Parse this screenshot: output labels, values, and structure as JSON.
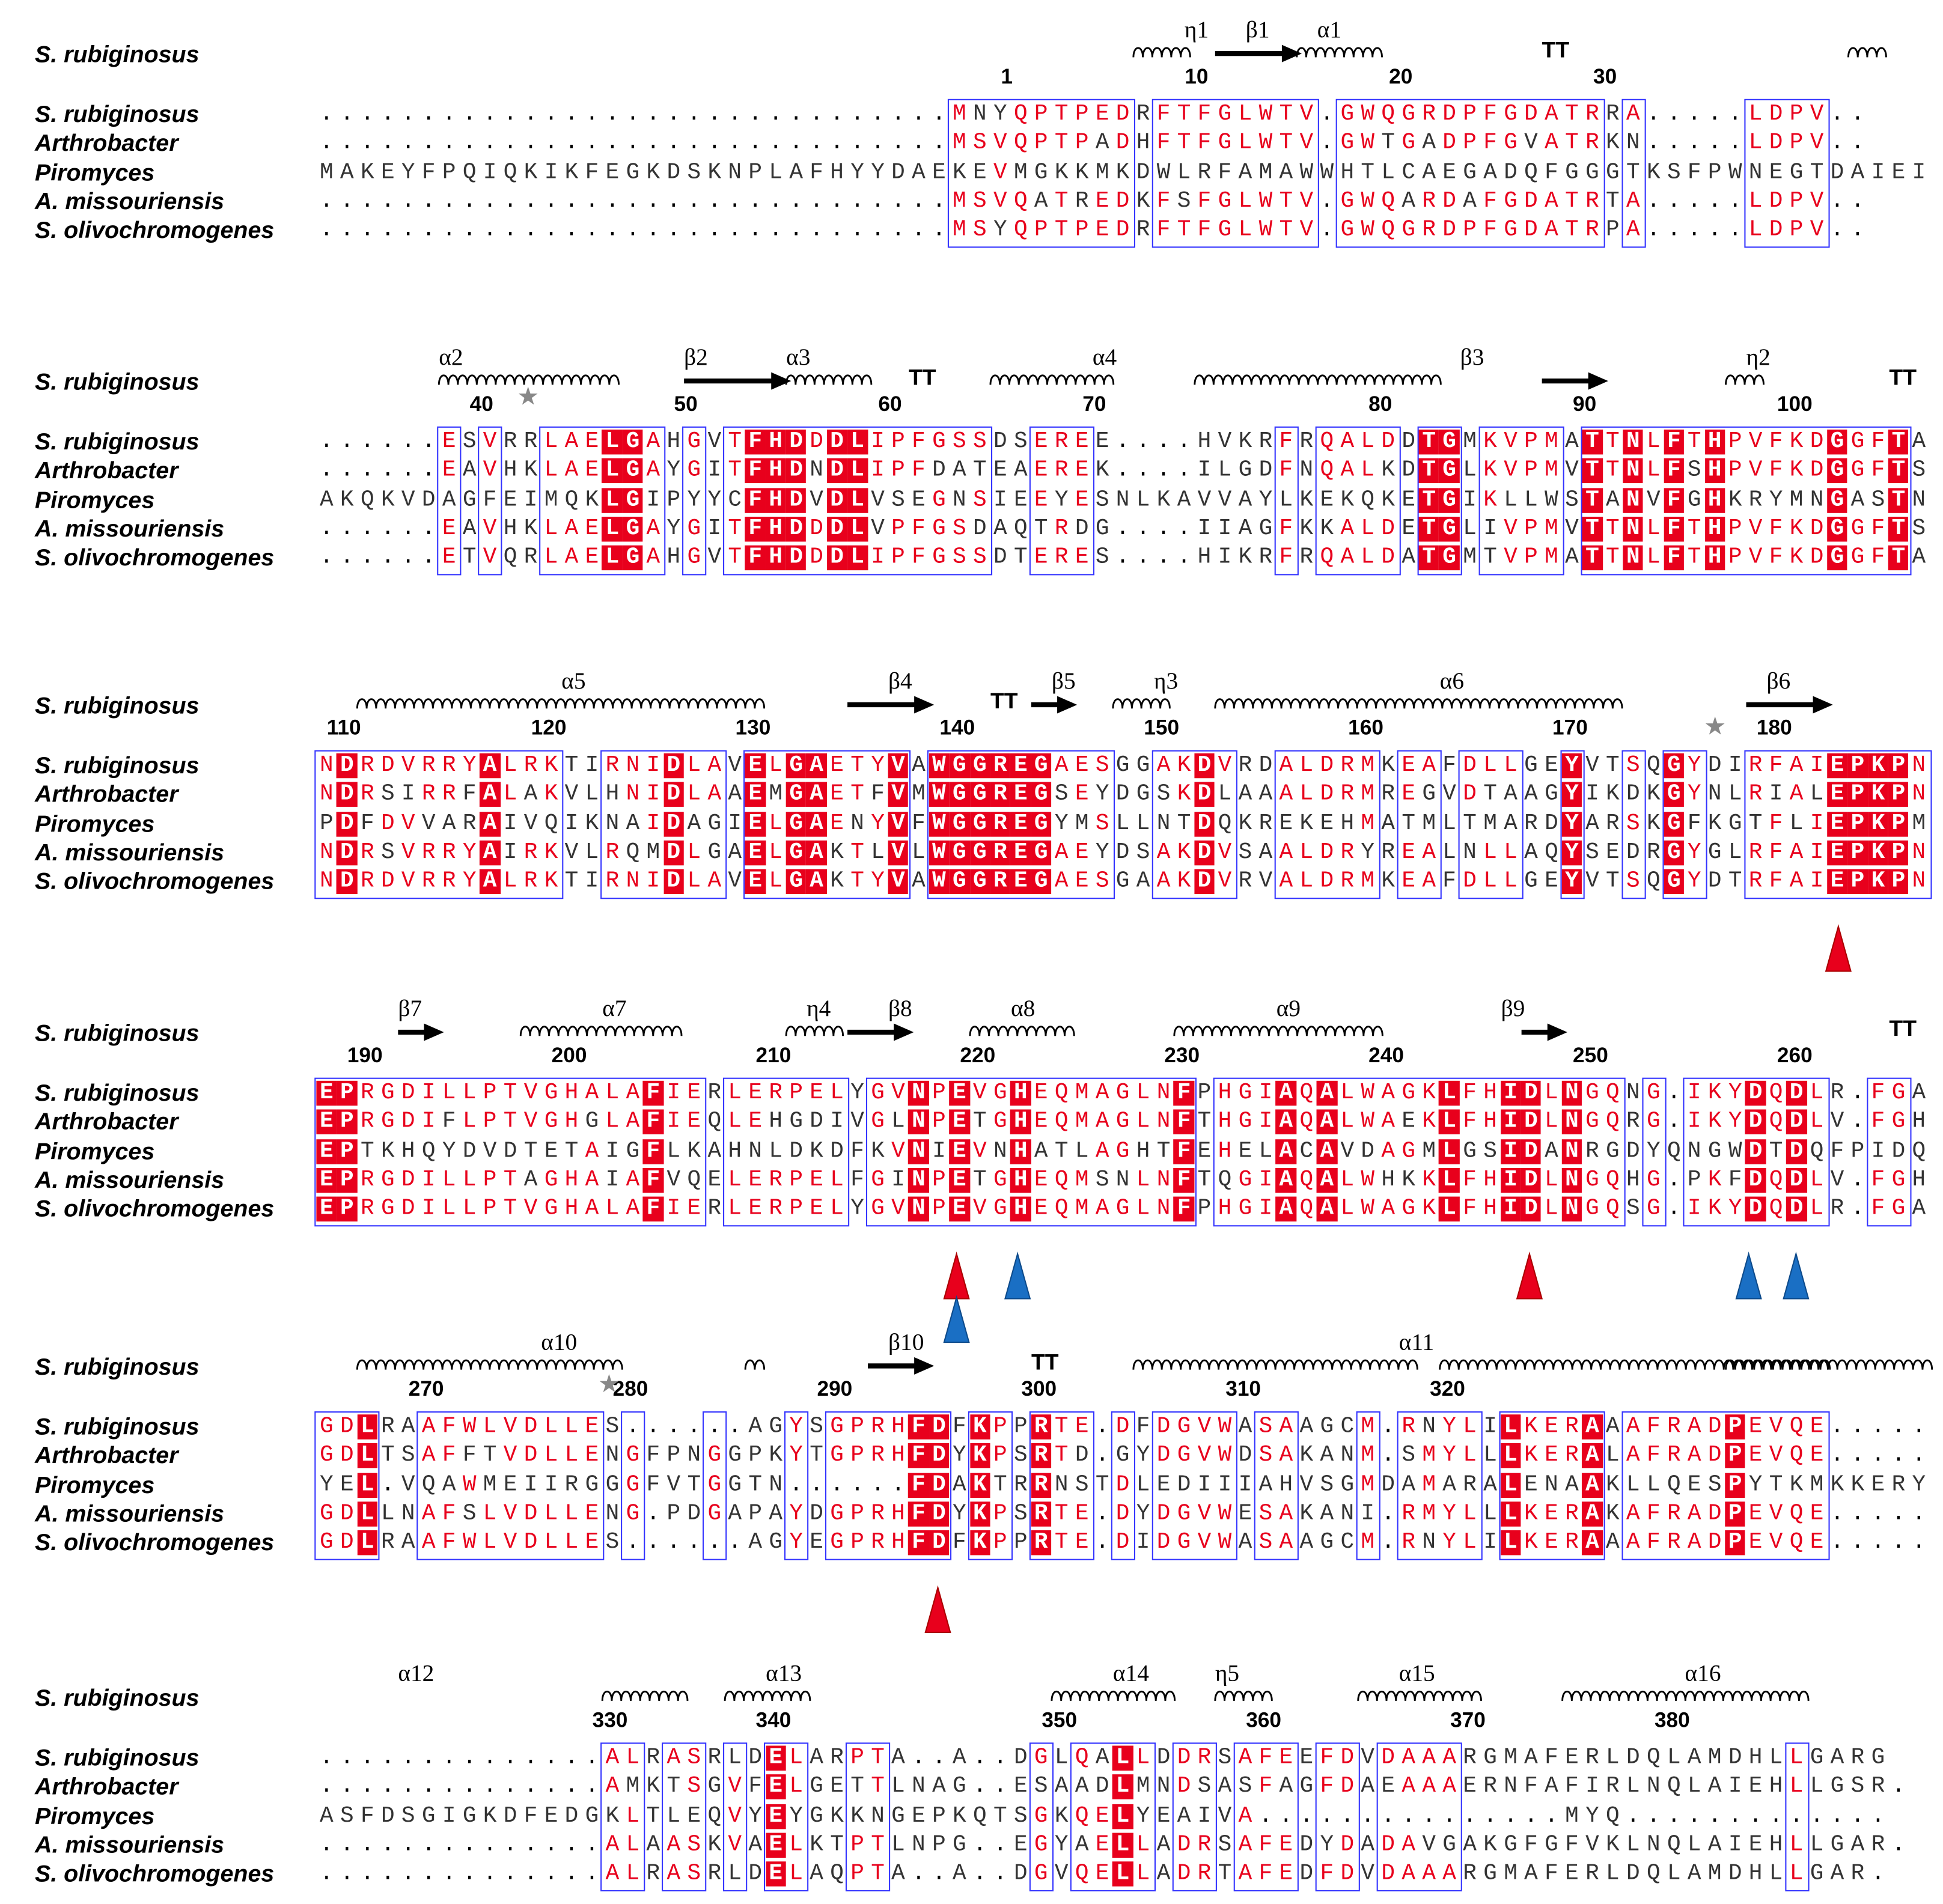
{
  "species": [
    "S. rubiginosus",
    "Arthrobacter",
    "Piromyces",
    "A. missouriensis",
    "S. olivochromogenes"
  ],
  "ss_reference": "S. rubiginosus",
  "blocks": [
    {
      "ss_labels": [
        "η1",
        "β1",
        "α1",
        "TT"
      ],
      "numbers": [
        "1",
        "10",
        "20",
        "30"
      ],
      "rows": [
        "...............................MNYQPTPEDRFTFGLWTV.GWQGRDPFGDATRRA.....LDPV..",
        "...............................MSVQPTPADHFTFGLWTV.GWTGADPFGVATRKN.....LDPV..",
        "MAKEYFPQIQKIKFEGKDSKNPLAFHYYDAEKEVMGKKMKDWLRFAMAWWHTLCAEGADQFGGGTKSFPWNEGTDAIEI",
        "...............................MSVQATREDKFSFGLWTV.GWQARDAFGDATRTA.....LDPV..",
        "...............................MSYQPTPEDRFTFGLWTV.GWQGRDPFGDATRPA.....LDPV.."
      ]
    },
    {
      "ss_labels": [
        "α2",
        "β2",
        "α3",
        "TT",
        "α4",
        "β3",
        "η2",
        "TT"
      ],
      "numbers": [
        "40",
        "50",
        "60",
        "70",
        "80",
        "90",
        "100"
      ],
      "rows": [
        "......ESVRRLAELGAHGVTFHDDDLIPFGSSDSEREE....HVKRFRQALDDTGMKVPMATTNLFTHPVFKDGGFTA",
        "......EAVHKLAELGAYGITFHDNDLIPFDATEAEREK....ILGDFNQALKDTGLKVPMVTTNLFSHPVFKDGGFTS",
        "AKQKVDAGFEIMQKLGIPYYCFHDVDLVSEGNSIEEYESNLKAVVAYLKEKQKETGIKLLWSTANVFGHKRYMNGASTN",
        "......EAVHKLAELGAYGITFHDDDLVPFGSDAQTRDG....IIAGFKKALDETGLIVPMVTTNLFTHPVFKDGGFTS",
        "......ETVQRLAELGAHGVTFHDDDLIPFGSSDTERES....HIKRFRQALDATGMTVPMATTNLFTHPVFKDGGFTA"
      ]
    },
    {
      "ss_labels": [
        "α5",
        "β4",
        "TT",
        "β5",
        "η3",
        "α6",
        "β6"
      ],
      "numbers": [
        "110",
        "120",
        "130",
        "140",
        "150",
        "160",
        "170",
        "180"
      ],
      "rows": [
        "NDRDVRRYALRKTIRNIDLAVELGAETYVAWGGREGAESGGAKDVRDALDRMKEAFDLLGEYVTSQGYDIRFAIEPKPN",
        "NDRSIRRFALAKVLHNIDLAAEMGAETFVMWGGREGSEYDGSKDLAAALDRMREGVDTAAGYIKDKGYNLRIALEPKPN",
        "PDFDVVARAIVQIKNAIDAGIELGAENYVFWGGREGYMSLLNTDQKREKEHMATMLTMARDYARSKGFKGTFLIEPKPM",
        "NDRSVRRYAIRKVLRQMDLGAELGAKTLVLWGGREGAEYDSAKDVSAALDRYREALNLLAQYSEDRGYGLRFAIEPKPN",
        "NDRDVRRYALRKTIRNIDLAVELGAKTYVAWGGREGAESGAAKDVRVALDRMKEAFDLLGEYVTSQGYDTRFAIEPKPN"
      ]
    },
    {
      "ss_labels": [
        "β7",
        "α7",
        "η4",
        "β8",
        "α8",
        "α9",
        "β9",
        "TT"
      ],
      "numbers": [
        "190",
        "200",
        "210",
        "220",
        "230",
        "240",
        "250",
        "260"
      ],
      "rows": [
        "EPRGDILLPTVGHALAFIERLERPELYGVNPEVGHEQMAGLNFPHGIAQALWAGKLFHIDLNGQNG.IKYDQDLR.FGA",
        "EPRGDIFLPTVGHGLAFIEQLEHGDIVGLNPETGHEQMAGLNFTHGIAQALWAEKLFHIDLNGQRG.IKYDQDLV.FGH",
        "EPTKHQYDVDTETAIGFLKAHNLDKDFKVNIEVNHATLAGHTFEHELACAVDAGMLGSIDANRGDYQNGWDTDQFPIDQ",
        "EPRGDILLPTAGHAIAFVQELERPELFGINPETGHEQMSNLNFTQGIAQALWHKKLFHIDLNGQHG.PKFDQDLV.FGH",
        "EPRGDILLPTVGHALAFIERLERPELYGVNPEVGHEQMAGLNFPHGIAQALWAGKLFHIDLNGQSG.IKYDQDLR.FGA"
      ]
    },
    {
      "ss_labels": [
        "α10",
        "β10",
        "TT",
        "α11"
      ],
      "numbers": [
        "270",
        "280",
        "290",
        "300",
        "310",
        "320"
      ],
      "rows": [
        "GDLRAAFWLVDLLES......AGYSGPRHFDFKPPRTE.DFDGVWASAAGCM.RNYLILKERAAAFRADPEVQE.....",
        "GDLTSAFFTVDLLENGFPNGGPKYTGPRHFDYKPSRTD.GYDGVWDSAKANM.SMYLLLKERALAFRADPEVQE.....",
        "YEL.VQAWMEIIRGGGFVTGGTN......FDAKTRRNSTDLEDIIIAHVSGMDAMARALENAAKLLQESPYTKMKKERY",
        "GDLLNAFSLVDLLENG.PDGAPAYDGPRHFDYKPSRTE.DYDGVWESAKANI.RMYLLLKERAKAFRADPEVQE.....",
        "GDLRAAFWLVDLLES......AGYEGPRHFDFKPPRTE.DIDGVWASAAGCM.RNYLILKERAAAFRADPEVQE....."
      ]
    },
    {
      "ss_labels": [
        "α12",
        "α13",
        "α14",
        "η5",
        "α15",
        "α16"
      ],
      "numbers": [
        "330",
        "340",
        "350",
        "360",
        "370",
        "380"
      ],
      "rows": [
        "..............ALRASRLDELARPTA..A..DGLQALLDDRSAFEEFDVDAAARGMAFERLDQLAMDHLLGARG",
        "..............AMKTSGVFELGETTLNAG..ESAADLMNDSASFAGFDAEAAAERNFAFIRLNQLAIEHLLGSR.",
        "ASFDSGIGKDFEDGKLTLEQVYEYGKKNGEPKQTSGKQELYEAIVA...............MYQ.............",
        "..............ALAASKVAELKTPTLNPG..EGYAELLADRSAFEDYDADAVGAKGFGFVKLNQLAIEHLLGAR.",
        "..............ALRASRLDELAQPTA..A..DGVQELLADRTAFEDFDVDAAARGMAFERLDQLAMDHLLGAR."
      ]
    }
  ],
  "colors": {
    "conserved": "#e8001c",
    "similar": "#e8001c",
    "box": "#3333ff",
    "red_marker": "#e8001c",
    "blue_marker": "#1a6fc4"
  },
  "markers": {
    "red": [
      "E181",
      "E217",
      "H243",
      "D287"
    ],
    "blue": [
      "H220",
      "D255",
      "D257",
      "E217"
    ]
  }
}
